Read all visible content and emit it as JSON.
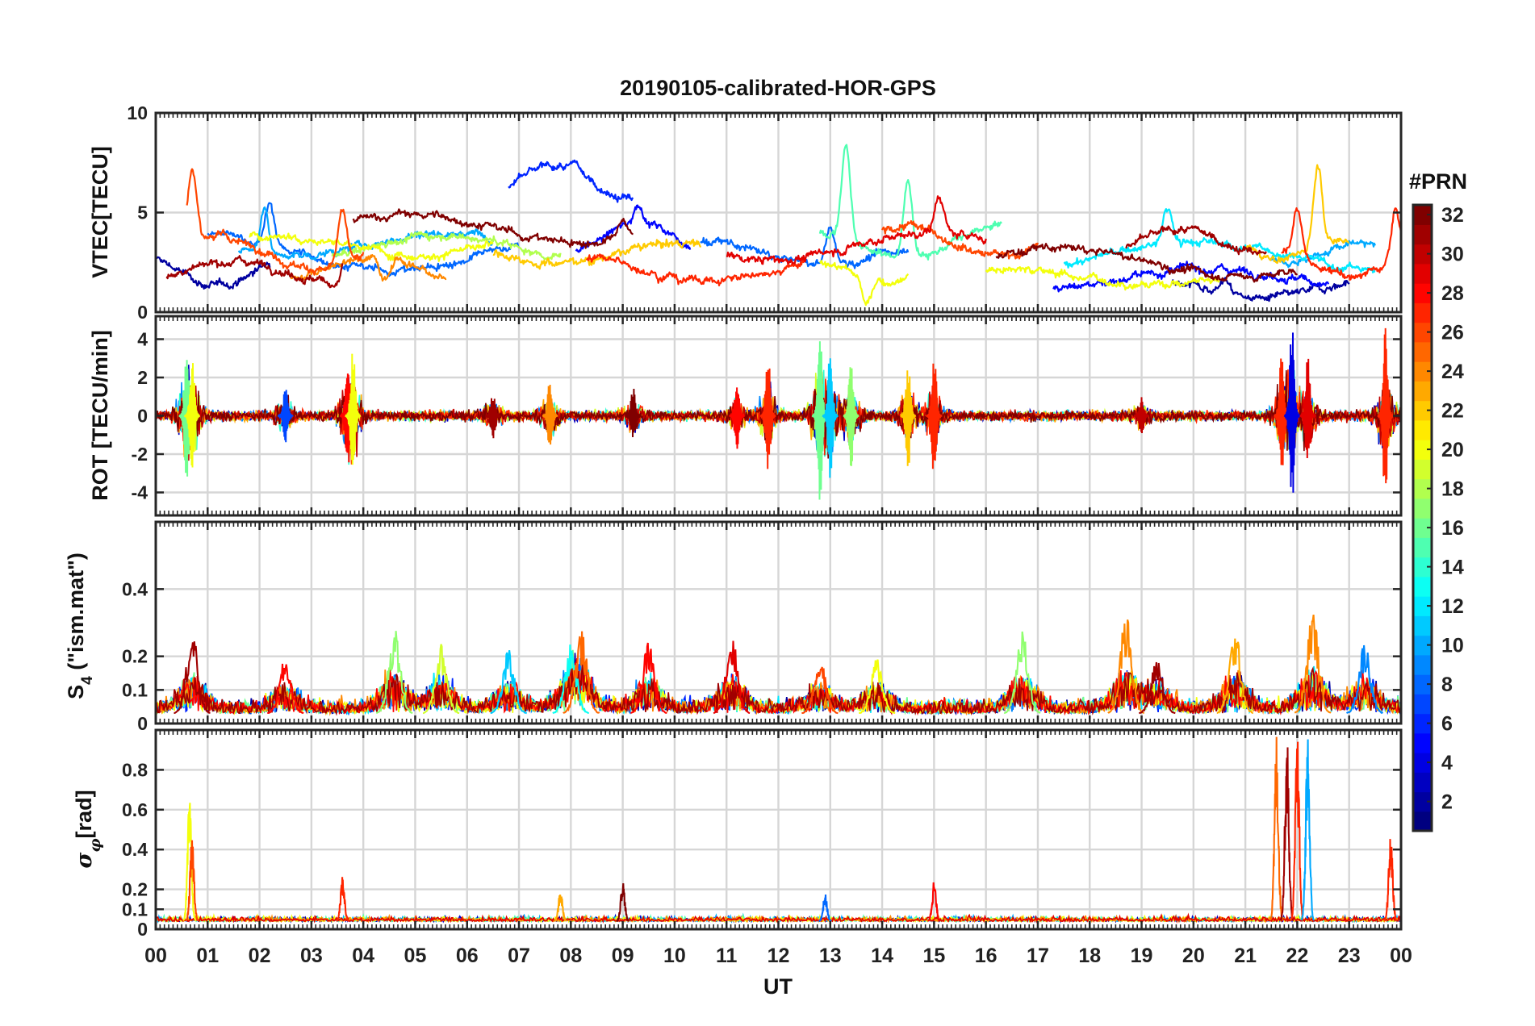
{
  "chart_data": {
    "type": "line",
    "title": "20190105-calibrated-HOR-GPS",
    "xlabel": "UT",
    "x_ticks": [
      "00",
      "01",
      "02",
      "03",
      "04",
      "05",
      "06",
      "07",
      "08",
      "09",
      "10",
      "11",
      "12",
      "13",
      "14",
      "15",
      "16",
      "17",
      "18",
      "19",
      "20",
      "21",
      "22",
      "23",
      "00"
    ],
    "xlim_hours": [
      0,
      24
    ],
    "colorbar": {
      "label": "#PRN",
      "range": [
        1,
        32
      ],
      "ticks": [
        "2",
        "4",
        "6",
        "8",
        "10",
        "12",
        "14",
        "16",
        "18",
        "20",
        "22",
        "24",
        "26",
        "28",
        "30",
        "32"
      ],
      "colormap": "jet"
    },
    "panels": [
      {
        "id": "vtec",
        "ylabel": "VTEC[TECU]",
        "ylim": [
          0,
          10
        ],
        "y_ticks": [
          0,
          5,
          10
        ],
        "y_tick_labels": [
          "0",
          "5",
          "10"
        ],
        "series": [
          {
            "prn": 2,
            "segments": [
              [
                0.0,
                2.2,
                2.0,
                1.4
              ],
              [
                19.6,
                23.0,
                1.2,
                1.0
              ]
            ],
            "peaks": [
              [
                20.6,
                0.6
              ]
            ]
          },
          {
            "prn": 5,
            "segments": [
              [
                8.1,
                10.3,
                3.8,
                1.4
              ],
              [
                17.3,
                22.6,
                1.7,
                1.0
              ]
            ],
            "peaks": [
              [
                9.3,
                1.0
              ]
            ]
          },
          {
            "prn": 6,
            "segments": [
              [
                6.8,
                9.2,
                6.5,
                1.6
              ]
            ],
            "peaks": [
              [
                8.1,
                0.3
              ]
            ]
          },
          {
            "prn": 8,
            "segments": [
              [
                1.0,
                7.0,
                3.0,
                1.8
              ],
              [
                10.5,
                14.5,
                3.0,
                1.2
              ]
            ],
            "peaks": [
              [
                13.0,
                1.8
              ],
              [
                2.2,
                2.0
              ]
            ]
          },
          {
            "prn": 10,
            "segments": [
              [
                1.6,
                6.5,
                3.4,
                1.2
              ],
              [
                21.5,
                23.5,
                3.0,
                0.8
              ]
            ],
            "peaks": [
              [
                2.1,
                2.4
              ]
            ]
          },
          {
            "prn": 12,
            "segments": [
              [
                17.5,
                23.5,
                2.8,
                1.4
              ]
            ],
            "peaks": [
              [
                19.5,
                1.8
              ]
            ]
          },
          {
            "prn": 15,
            "segments": [
              [
                12.8,
                16.3,
                3.6,
                1.6
              ]
            ],
            "peaks": [
              [
                13.3,
                4.8
              ],
              [
                14.5,
                3.8
              ]
            ]
          },
          {
            "prn": 18,
            "segments": [
              [
                3.4,
                7.8,
                3.3,
                1.2
              ]
            ],
            "peaks": []
          },
          {
            "prn": 20,
            "segments": [
              [
                1.8,
                6.5,
                3.4,
                1.0
              ],
              [
                12.8,
                14.5,
                2.0,
                1.0
              ],
              [
                16.0,
                20.5,
                1.8,
                0.8
              ]
            ],
            "peaks": [
              [
                13.7,
                -1.4
              ]
            ]
          },
          {
            "prn": 22,
            "segments": [
              [
                6.5,
                10.5,
                3.0,
                1.0
              ],
              [
                21.0,
                23.0,
                3.2,
                1.0
              ]
            ],
            "peaks": [
              [
                22.4,
                4.0
              ]
            ]
          },
          {
            "prn": 24,
            "segments": [
              [
                2.6,
                5.6,
                2.2,
                1.2
              ]
            ],
            "peaks": [
              [
                4.4,
                -1.2
              ]
            ]
          },
          {
            "prn": 26,
            "segments": [
              [
                0.6,
                4.0,
                3.0,
                1.6
              ],
              [
                14.0,
                17.0,
                3.6,
                1.4
              ]
            ],
            "peaks": [
              [
                0.7,
                3.5
              ],
              [
                3.6,
                2.6
              ]
            ]
          },
          {
            "prn": 27,
            "segments": [
              [
                8.3,
                12.5,
                2.2,
                1.2
              ],
              [
                21.7,
                24.0,
                2.4,
                1.2
              ]
            ],
            "peaks": [
              [
                22.0,
                2.5
              ],
              [
                23.9,
                2.5
              ]
            ]
          },
          {
            "prn": 29,
            "segments": [
              [
                11.0,
                16.0,
                3.3,
                1.4
              ]
            ],
            "peaks": [
              [
                15.1,
                1.8
              ]
            ]
          },
          {
            "prn": 31,
            "segments": [
              [
                0.2,
                3.6,
                2.0,
                1.2
              ],
              [
                18.7,
                21.4,
                3.5,
                1.2
              ]
            ],
            "peaks": [
              [
                3.7,
                2.2
              ]
            ]
          },
          {
            "prn": 32,
            "segments": [
              [
                3.8,
                9.2,
                4.2,
                1.4
              ],
              [
                16.2,
                22.0,
                2.5,
                1.4
              ]
            ],
            "peaks": [
              [
                9.0,
                0.8
              ]
            ]
          }
        ]
      },
      {
        "id": "rot",
        "ylabel": "ROT [TECU/min]",
        "ylim": [
          -5.2,
          5.2
        ],
        "y_ticks": [
          -4,
          -2,
          0,
          2,
          4
        ],
        "y_tick_labels": [
          "-4",
          "-2",
          "0",
          "2",
          "4"
        ],
        "background_amplitude": 0.25,
        "bursts": [
          {
            "hour": 0.6,
            "amplitude": 3.5,
            "prn": 16
          },
          {
            "hour": 0.7,
            "amplitude": 3.0,
            "prn": 20
          },
          {
            "hour": 2.5,
            "amplitude": 1.5,
            "prn": 7
          },
          {
            "hour": 3.7,
            "amplitude": 3.0,
            "prn": 28
          },
          {
            "hour": 3.8,
            "amplitude": 3.5,
            "prn": 20
          },
          {
            "hour": 6.5,
            "amplitude": 1.3,
            "prn": 31
          },
          {
            "hour": 7.6,
            "amplitude": 2.0,
            "prn": 24
          },
          {
            "hour": 9.2,
            "amplitude": 1.5,
            "prn": 32
          },
          {
            "hour": 11.2,
            "amplitude": 1.8,
            "prn": 28
          },
          {
            "hour": 11.8,
            "amplitude": 3.2,
            "prn": 27
          },
          {
            "hour": 12.8,
            "amplitude": 4.6,
            "prn": 16
          },
          {
            "hour": 13.0,
            "amplitude": 3.5,
            "prn": 11
          },
          {
            "hour": 13.4,
            "amplitude": 3.0,
            "prn": 17
          },
          {
            "hour": 14.5,
            "amplitude": 3.0,
            "prn": 22
          },
          {
            "hour": 15.0,
            "amplitude": 3.2,
            "prn": 27
          },
          {
            "hour": 19.0,
            "amplitude": 1.0,
            "prn": 30
          },
          {
            "hour": 21.7,
            "amplitude": 3.5,
            "prn": 27
          },
          {
            "hour": 21.9,
            "amplitude": 4.8,
            "prn": 4
          },
          {
            "hour": 22.2,
            "amplitude": 3.2,
            "prn": 29
          },
          {
            "hour": 23.7,
            "amplitude": 4.7,
            "prn": 27
          }
        ]
      },
      {
        "id": "s4",
        "ylabel": "S4 (\"ism.mat\")",
        "ylabel_main": "S",
        "ylabel_sub": "4",
        "ylabel_rest": " (\"ism.mat\")",
        "ylim": [
          0,
          0.6
        ],
        "y_ticks": [
          0,
          0.1,
          0.2,
          0.4
        ],
        "y_tick_labels": [
          "0",
          "0.1",
          "0.2",
          "0.4"
        ],
        "baseline": 0.03,
        "bursts": [
          {
            "hour": 0.7,
            "amplitude": 0.28,
            "prn": 31
          },
          {
            "hour": 2.5,
            "amplitude": 0.2,
            "prn": 28
          },
          {
            "hour": 4.6,
            "amplitude": 0.29,
            "prn": 17
          },
          {
            "hour": 5.5,
            "amplitude": 0.24,
            "prn": 19
          },
          {
            "hour": 6.8,
            "amplitude": 0.22,
            "prn": 11
          },
          {
            "hour": 8.0,
            "amplitude": 0.24,
            "prn": 13
          },
          {
            "hour": 8.2,
            "amplitude": 0.28,
            "prn": 25
          },
          {
            "hour": 9.5,
            "amplitude": 0.25,
            "prn": 28
          },
          {
            "hour": 11.1,
            "amplitude": 0.27,
            "prn": 29
          },
          {
            "hour": 12.8,
            "amplitude": 0.2,
            "prn": 26
          },
          {
            "hour": 13.9,
            "amplitude": 0.2,
            "prn": 20
          },
          {
            "hour": 16.7,
            "amplitude": 0.28,
            "prn": 17
          },
          {
            "hour": 18.7,
            "amplitude": 0.33,
            "prn": 24
          },
          {
            "hour": 19.3,
            "amplitude": 0.2,
            "prn": 31
          },
          {
            "hour": 20.8,
            "amplitude": 0.28,
            "prn": 23
          },
          {
            "hour": 22.3,
            "amplitude": 0.34,
            "prn": 24
          },
          {
            "hour": 23.3,
            "amplitude": 0.25,
            "prn": 9
          }
        ]
      },
      {
        "id": "sigma_phi",
        "ylabel": "σφ[rad]",
        "ylabel_main": "σ",
        "ylabel_sub": "φ",
        "ylabel_rest": "[rad]",
        "ylim": [
          0,
          1.0
        ],
        "y_ticks": [
          0,
          0.1,
          0.2,
          0.4,
          0.6,
          0.8
        ],
        "y_tick_labels": [
          "0",
          "0.1",
          "0.2",
          "0.4",
          "0.6",
          "0.8"
        ],
        "baseline": 0.04,
        "bursts": [
          {
            "hour": 0.65,
            "amplitude": 0.66,
            "prn": 20
          },
          {
            "hour": 0.7,
            "amplitude": 0.47,
            "prn": 26
          },
          {
            "hour": 3.6,
            "amplitude": 0.27,
            "prn": 27
          },
          {
            "hour": 7.8,
            "amplitude": 0.2,
            "prn": 23
          },
          {
            "hour": 9.0,
            "amplitude": 0.25,
            "prn": 32
          },
          {
            "hour": 12.9,
            "amplitude": 0.18,
            "prn": 8
          },
          {
            "hour": 15.0,
            "amplitude": 0.25,
            "prn": 28
          },
          {
            "hour": 21.6,
            "amplitude": 1.0,
            "prn": 25
          },
          {
            "hour": 21.8,
            "amplitude": 1.0,
            "prn": 31
          },
          {
            "hour": 22.0,
            "amplitude": 1.0,
            "prn": 27
          },
          {
            "hour": 22.2,
            "amplitude": 1.0,
            "prn": 10
          },
          {
            "hour": 23.8,
            "amplitude": 0.5,
            "prn": 27
          }
        ]
      }
    ]
  }
}
